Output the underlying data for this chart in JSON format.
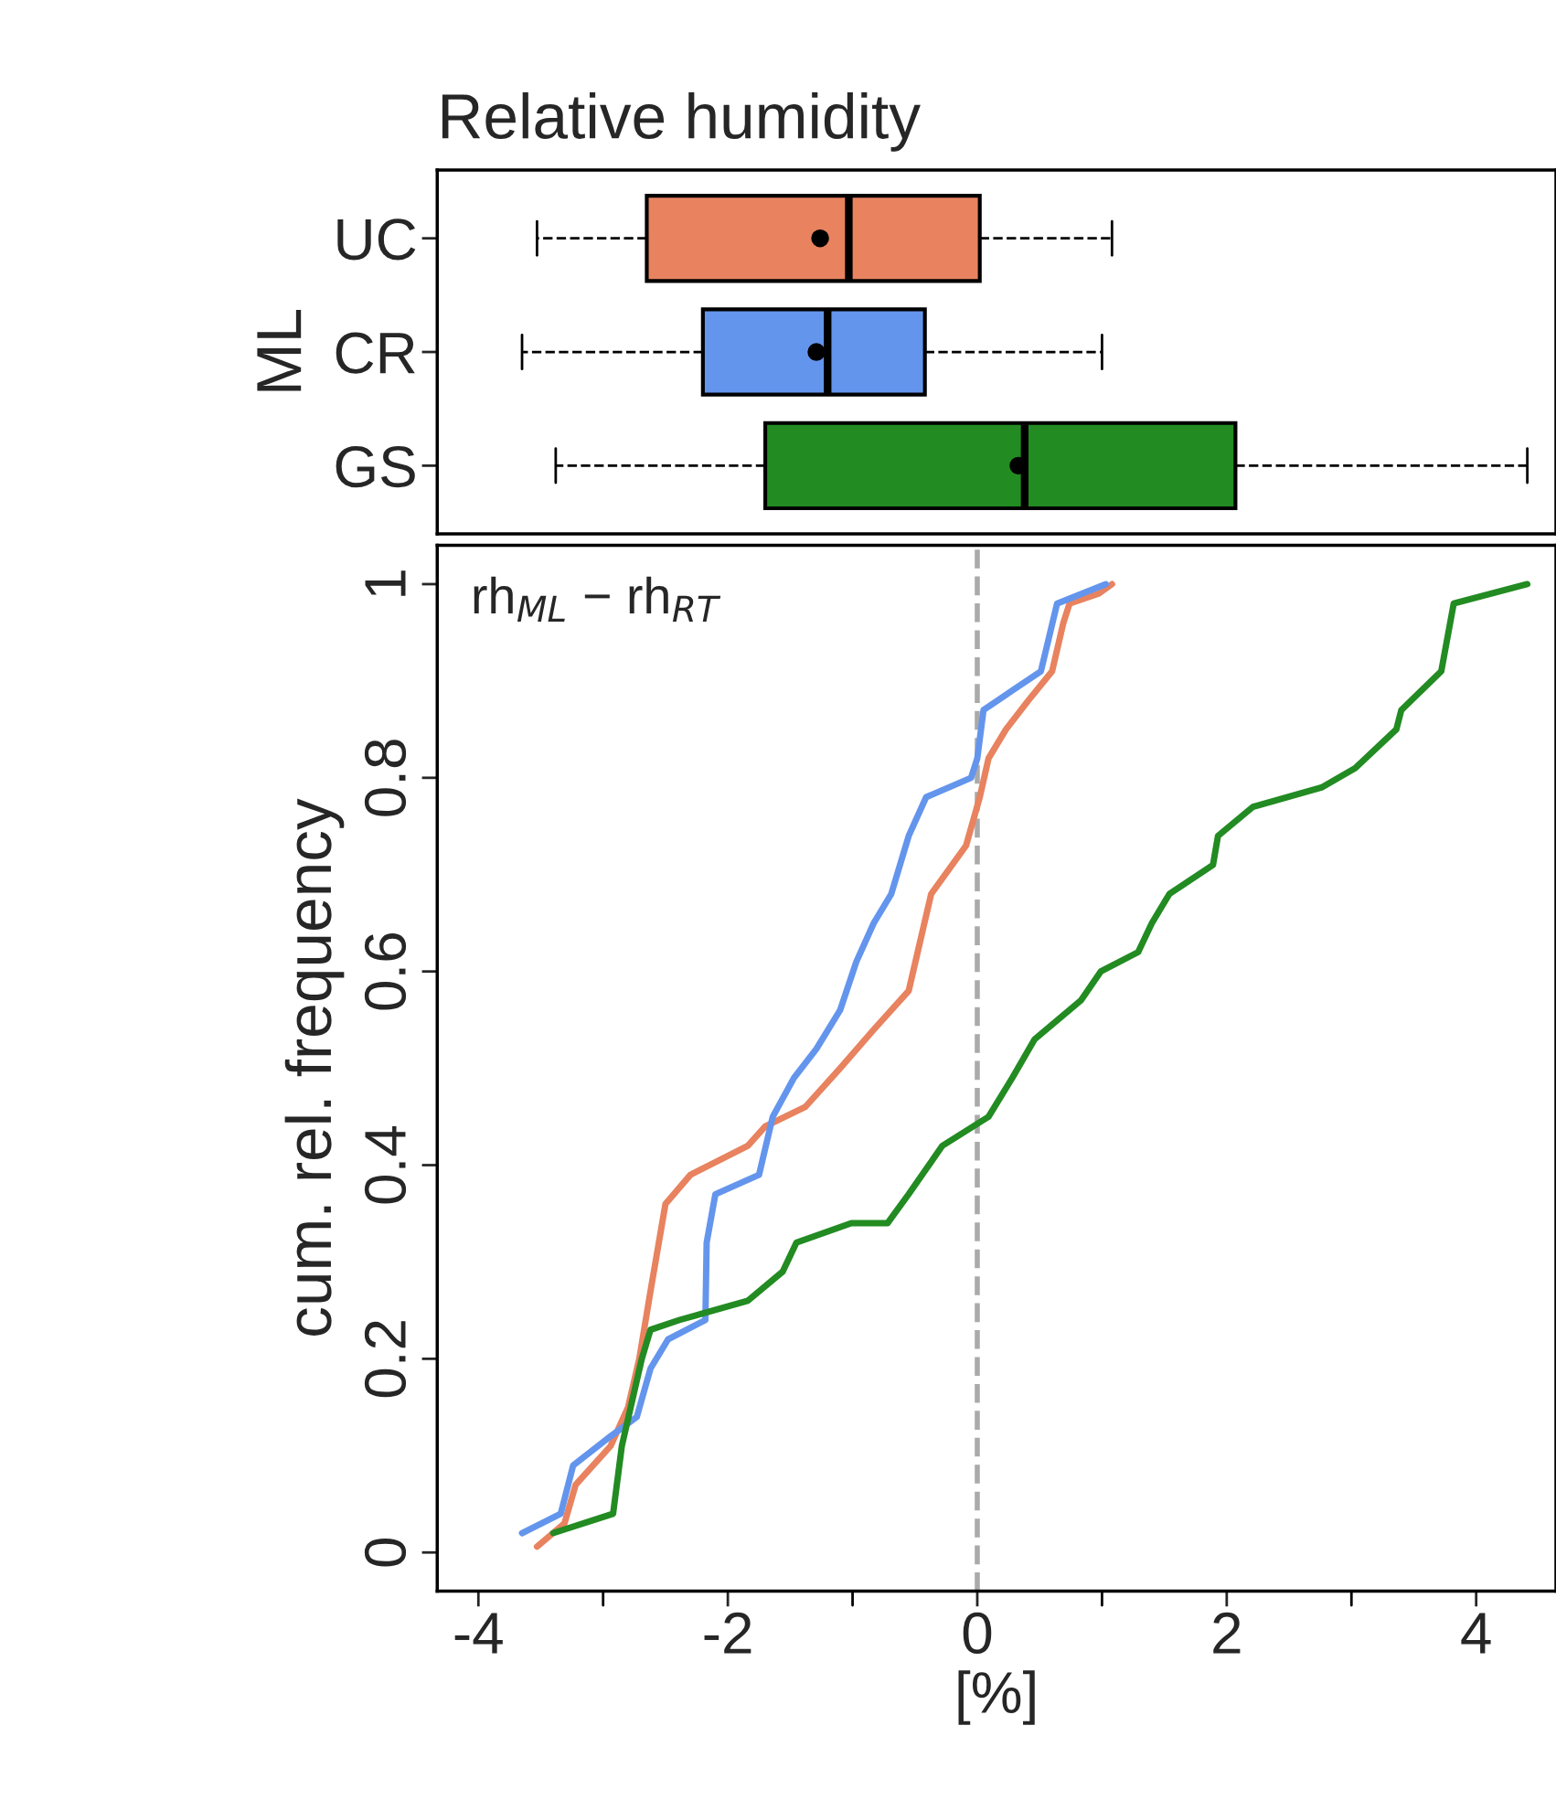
{
  "chart_data": [
    {
      "type": "box",
      "title": "Relative humidity",
      "ylabel": "ML",
      "orientation": "horizontal",
      "categories": [
        "UC",
        "CR",
        "GS"
      ],
      "colors": [
        "#e8825f",
        "#6495ed",
        "#228b22"
      ],
      "boxes": [
        {
          "low": -3.53,
          "q1": -2.65,
          "median": -1.03,
          "q3": 0.02,
          "high": 1.08,
          "mean": -1.26
        },
        {
          "low": -3.65,
          "q1": -2.2,
          "median": -1.2,
          "q3": -0.42,
          "high": 1.0,
          "mean": -1.29
        },
        {
          "low": -3.38,
          "q1": -1.7,
          "median": 0.38,
          "q3": 2.07,
          "high": 4.41,
          "mean": 0.33
        }
      ],
      "xlim": [
        -4.33,
        4.64
      ],
      "tick_labels": "y",
      "line_style": "dashed"
    },
    {
      "type": "line",
      "xlabel": "[%]",
      "ylabel": "cum. rel. frequency",
      "annotations": [
        "rh$_{ML}$ − rh$_{RT}$"
      ],
      "xlim": [
        -4.33,
        4.64
      ],
      "ylim": [
        -0.04,
        1.04
      ],
      "xticks": [
        -4,
        {
          "value": -3,
          "label": null
        },
        -2,
        {
          "value": -1,
          "label": null
        },
        0,
        {
          "value": 1,
          "label": null
        },
        2,
        {
          "value": 3,
          "label": null
        },
        4
      ],
      "yticks": [
        0,
        0.2,
        0.4,
        0.6,
        0.8,
        1
      ],
      "ref_lines": [
        {
          "axis": "x",
          "value": 0,
          "color": "#aaaaaa",
          "line_style": "dashed"
        }
      ],
      "series": [
        {
          "color": "#e8825f",
          "x": [
            -3.53,
            -3.31,
            -3.22,
            -2.94,
            -2.8,
            -2.71,
            -2.62,
            -2.5,
            -2.3,
            -1.84,
            -1.7,
            -1.38,
            -1.1,
            -0.83,
            -0.55,
            -0.46,
            -0.37,
            -0.09,
            0.02,
            0.09,
            0.23,
            0.41,
            0.6,
            0.69,
            0.74,
            0.97,
            1.08
          ],
          "values": [
            0.006,
            0.03,
            0.07,
            0.11,
            0.15,
            0.2,
            0.27,
            0.36,
            0.39,
            0.42,
            0.44,
            0.46,
            0.5,
            0.54,
            0.58,
            0.63,
            0.68,
            0.73,
            0.78,
            0.82,
            0.85,
            0.88,
            0.91,
            0.96,
            0.98,
            0.99,
            1.0
          ]
        },
        {
          "color": "#6495ed",
          "x": [
            -3.65,
            -3.34,
            -3.24,
            -2.94,
            -2.73,
            -2.62,
            -2.48,
            -2.18,
            -2.17,
            -2.1,
            -1.75,
            -1.64,
            -1.47,
            -1.29,
            -1.1,
            -0.97,
            -0.83,
            -0.69,
            -0.55,
            -0.41,
            -0.05,
            0.0,
            0.05,
            0.28,
            0.51,
            0.64,
            1.03
          ],
          "values": [
            0.02,
            0.04,
            0.09,
            0.12,
            0.14,
            0.19,
            0.22,
            0.24,
            0.32,
            0.37,
            0.39,
            0.45,
            0.49,
            0.52,
            0.56,
            0.61,
            0.65,
            0.68,
            0.74,
            0.78,
            0.8,
            0.82,
            0.87,
            0.89,
            0.91,
            0.98,
            1.0
          ]
        },
        {
          "color": "#228b22",
          "x": [
            -3.4,
            -2.92,
            -2.85,
            -2.69,
            -2.62,
            -2.39,
            -1.84,
            -1.56,
            -1.45,
            -1.01,
            -0.72,
            -0.55,
            -0.28,
            0.09,
            0.28,
            0.46,
            0.83,
            0.99,
            1.29,
            1.4,
            1.54,
            1.89,
            1.93,
            2.21,
            2.76,
            3.03,
            3.36,
            3.4,
            3.72,
            3.82,
            4.41
          ],
          "values": [
            0.02,
            0.04,
            0.11,
            0.2,
            0.23,
            0.24,
            0.26,
            0.29,
            0.32,
            0.34,
            0.34,
            0.37,
            0.42,
            0.45,
            0.49,
            0.53,
            0.57,
            0.6,
            0.62,
            0.65,
            0.68,
            0.71,
            0.74,
            0.77,
            0.79,
            0.81,
            0.85,
            0.87,
            0.91,
            0.98,
            1.0
          ]
        }
      ]
    }
  ]
}
